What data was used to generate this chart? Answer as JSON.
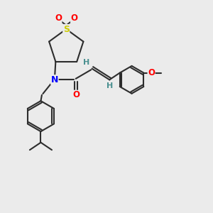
{
  "background_color": "#ebebeb",
  "bond_color": "#2d2d2d",
  "N_color": "#0000ff",
  "O_color": "#ff0000",
  "S_color": "#cccc00",
  "H_color": "#4a9090",
  "figsize": [
    3.0,
    3.0
  ],
  "dpi": 100,
  "xlim": [
    0,
    10
  ],
  "ylim": [
    0,
    10
  ]
}
